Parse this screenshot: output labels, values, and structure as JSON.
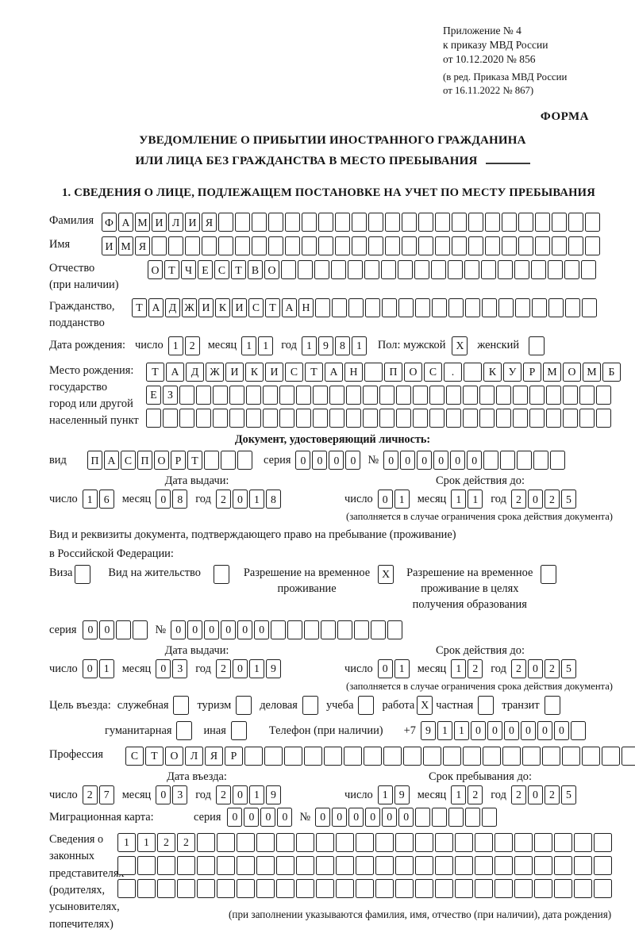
{
  "doc": {
    "annex_line1": "Приложение № 4",
    "annex_line2": "к приказу МВД России",
    "annex_line3": "от 10.12.2020 № 856",
    "annex_sub1": "(в ред. Приказа МВД России",
    "annex_sub2": "от 16.11.2022 № 867)",
    "forma": "ФОРМА",
    "title1": "УВЕДОМЛЕНИЕ О ПРИБЫТИИ ИНОСТРАННОГО ГРАЖДАНИНА",
    "title2": "ИЛИ ЛИЦА БЕЗ ГРАЖДАНСТВА В МЕСТО ПРЕБЫВАНИЯ",
    "section1": "1. СВЕДЕНИЯ О ЛИЦЕ, ПОДЛЕЖАЩЕМ ПОСТАНОВКЕ НА УЧЕТ ПО МЕСТУ ПРЕБЫВАНИЯ"
  },
  "surname": {
    "label": "Фамилия",
    "cells": [
      "Ф",
      "А",
      "М",
      "И",
      "Л",
      "И",
      "Я"
    ]
  },
  "firstname": {
    "label": "Имя",
    "cells": [
      "И",
      "М",
      "Я"
    ]
  },
  "patronymic": {
    "label": "Отчество",
    "label2": "(при наличии)",
    "cells": [
      "О",
      "Т",
      "Ч",
      "Е",
      "С",
      "Т",
      "В",
      "О"
    ]
  },
  "citizenship": {
    "label": "Гражданство,",
    "label2": "подданство",
    "cells": [
      "Т",
      "А",
      "Д",
      "Ж",
      "И",
      "К",
      "И",
      "С",
      "Т",
      "А",
      "Н"
    ]
  },
  "birthdate": {
    "label": "Дата рождения:",
    "day_label": "число",
    "day": [
      "1",
      "2"
    ],
    "month_label": "месяц",
    "month": [
      "1",
      "1"
    ],
    "year_label": "год",
    "year": [
      "1",
      "9",
      "8",
      "1"
    ],
    "sex_label": "Пол: мужской",
    "male": "X",
    "female_label": "женский",
    "female": ""
  },
  "birthplace": {
    "label1": "Место рождения:",
    "label2": "государство",
    "label3": "город или другой",
    "label4": "населенный пункт",
    "row1": [
      "Т",
      "А",
      "Д",
      "Ж",
      "И",
      "К",
      "И",
      "С",
      "Т",
      "А",
      "Н",
      "",
      "П",
      "О",
      "С",
      ".",
      "",
      "К",
      "У",
      "Р",
      "М",
      "О",
      "М",
      "Б"
    ],
    "row2": [
      "Е",
      "З"
    ],
    "row3": []
  },
  "iddoc": {
    "heading": "Документ, удостоверяющий личность:",
    "type_label": "вид",
    "type_cells": [
      "П",
      "А",
      "С",
      "П",
      "О",
      "Р",
      "Т"
    ],
    "series_label": "серия",
    "series": [
      "0",
      "0",
      "0",
      "0"
    ],
    "number_label": "№",
    "number": [
      "0",
      "0",
      "0",
      "0",
      "0",
      "0"
    ]
  },
  "iddoc_dates": {
    "issue_head": "Дата выдачи:",
    "expiry_head": "Срок действия до:",
    "issue": {
      "day_label": "число",
      "day": [
        "1",
        "6"
      ],
      "month_label": "месяц",
      "month": [
        "0",
        "8"
      ],
      "year_label": "год",
      "year": [
        "2",
        "0",
        "1",
        "8"
      ]
    },
    "expiry": {
      "day_label": "число",
      "day": [
        "0",
        "1"
      ],
      "month_label": "месяц",
      "month": [
        "1",
        "1"
      ],
      "year_label": "год",
      "year": [
        "2",
        "0",
        "2",
        "5"
      ]
    },
    "note": "(заполняется в случае ограничения срока действия документа)"
  },
  "staydoc": {
    "line1": "Вид и реквизиты документа, подтверждающего право на пребывание (проживание)",
    "line2": "в Российской Федерации:",
    "visa_label": "Виза",
    "visa": "",
    "residence_label": "Вид на жительство",
    "residence": "",
    "rvp_label1": "Разрешение на временное",
    "rvp_label2": "проживание",
    "rvp": "X",
    "rvp_edu_label1": "Разрешение на временное",
    "rvp_edu_label2": "проживание в целях",
    "rvp_edu_label3": "получения образования",
    "rvp_edu": ""
  },
  "staydoc_number": {
    "series_label": "серия",
    "series": [
      "0",
      "0",
      "",
      ""
    ],
    "number_label": "№",
    "number": [
      "0",
      "0",
      "0",
      "0",
      "0",
      "0"
    ]
  },
  "staydoc_dates": {
    "issue_head": "Дата выдачи:",
    "expiry_head": "Срок действия до:",
    "issue": {
      "day_label": "число",
      "day": [
        "0",
        "1"
      ],
      "month_label": "месяц",
      "month": [
        "0",
        "3"
      ],
      "year_label": "год",
      "year": [
        "2",
        "0",
        "1",
        "9"
      ]
    },
    "expiry": {
      "day_label": "число",
      "day": [
        "0",
        "1"
      ],
      "month_label": "месяц",
      "month": [
        "1",
        "2"
      ],
      "year_label": "год",
      "year": [
        "2",
        "0",
        "2",
        "5"
      ]
    },
    "note": "(заполняется в случае ограничения срока действия документа)"
  },
  "purpose": {
    "label": "Цель въезда:",
    "options": [
      {
        "label": "служебная",
        "value": ""
      },
      {
        "label": "туризм",
        "value": ""
      },
      {
        "label": "деловая",
        "value": ""
      },
      {
        "label": "учеба",
        "value": ""
      },
      {
        "label": "работа",
        "value": "X"
      },
      {
        "label": "частная",
        "value": ""
      },
      {
        "label": "транзит",
        "value": ""
      }
    ],
    "options2": [
      {
        "label": "гуманитарная",
        "value": ""
      },
      {
        "label": "иная",
        "value": ""
      }
    ],
    "phone_label": "Телефон (при наличии)",
    "phone_prefix": "+7",
    "phone": [
      "9",
      "1",
      "1",
      "0",
      "0",
      "0",
      "0",
      "0",
      "0",
      ""
    ]
  },
  "profession": {
    "label": "Профессия",
    "cells": [
      "С",
      "Т",
      "О",
      "Л",
      "Я",
      "Р"
    ]
  },
  "entry_dates": {
    "entry_head": "Дата въезда:",
    "stay_head": "Срок пребывания до:",
    "entry": {
      "day_label": "число",
      "day": [
        "2",
        "7"
      ],
      "month_label": "месяц",
      "month": [
        "0",
        "3"
      ],
      "year_label": "год",
      "year": [
        "2",
        "0",
        "1",
        "9"
      ]
    },
    "stay": {
      "day_label": "число",
      "day": [
        "1",
        "9"
      ],
      "month_label": "месяц",
      "month": [
        "1",
        "2"
      ],
      "year_label": "год",
      "year": [
        "2",
        "0",
        "2",
        "5"
      ]
    }
  },
  "migration_card": {
    "label": "Миграционная карта:",
    "series_label": "серия",
    "series": [
      "0",
      "0",
      "0",
      "0"
    ],
    "number_label": "№",
    "number": [
      "0",
      "0",
      "0",
      "0",
      "0",
      "0"
    ]
  },
  "representatives": {
    "l1": "Сведения о",
    "l2": "законных",
    "l3": "представителях",
    "l4": "(родителях,",
    "l5": "усыновителях,",
    "l6": "попечителях)",
    "row1": [
      "1",
      "1",
      "2",
      "2"
    ],
    "row2": [],
    "row3": [],
    "note": "(при заполнении указываются фамилия, имя, отчество (при наличии), дата рождения)"
  }
}
